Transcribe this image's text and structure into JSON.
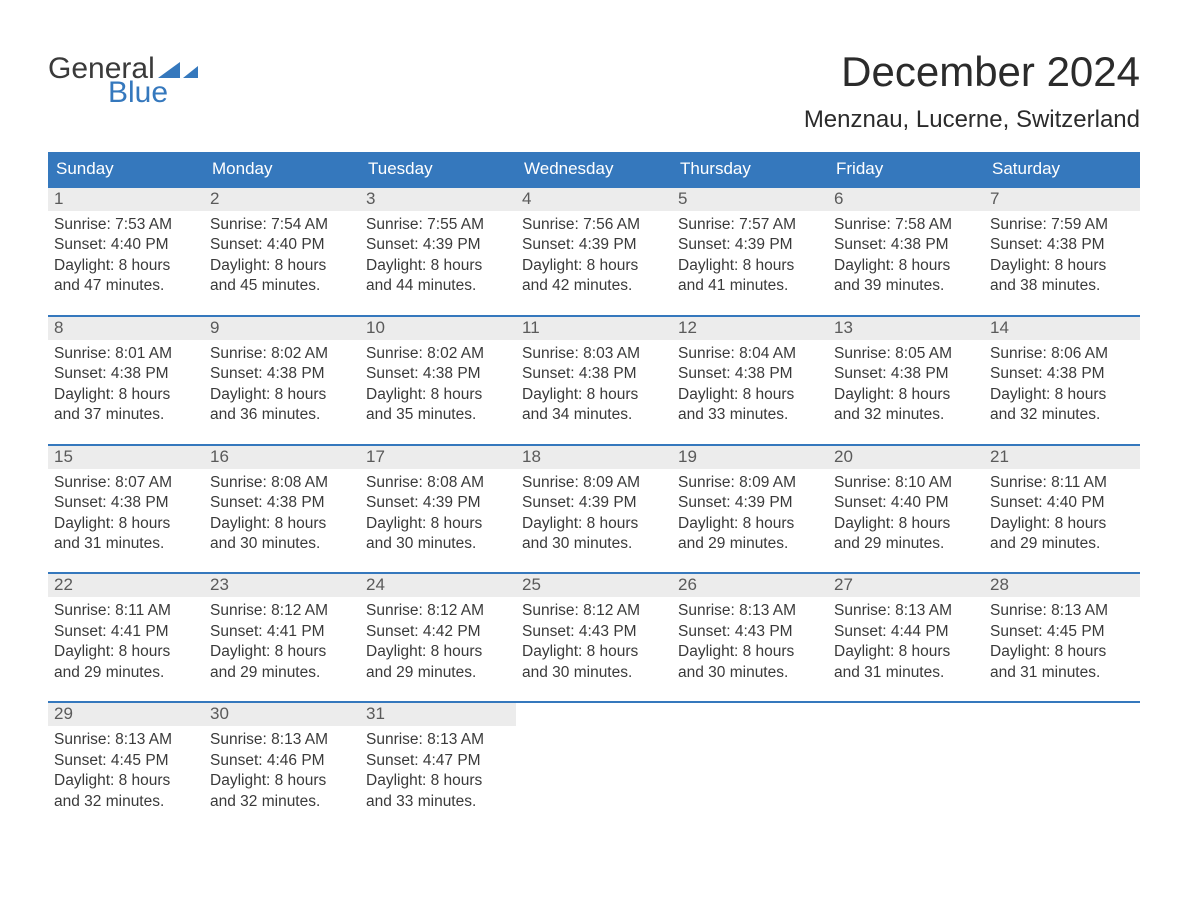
{
  "logo": {
    "top": "General",
    "bottom": "Blue",
    "accent_color": "#3578bd",
    "text_color": "#3a3a3a"
  },
  "title": "December 2024",
  "subtitle": "Menznau, Lucerne, Switzerland",
  "colors": {
    "header_bg": "#3578bd",
    "header_text": "#ffffff",
    "daynum_bg": "#ececec",
    "daynum_text": "#5a5a5a",
    "body_text": "#3a3a3a",
    "week_border": "#3578bd",
    "background": "#ffffff"
  },
  "typography": {
    "title_fontsize": 42,
    "subtitle_fontsize": 24,
    "dow_fontsize": 17,
    "daynum_fontsize": 17,
    "body_fontsize": 15.5
  },
  "dow": [
    "Sunday",
    "Monday",
    "Tuesday",
    "Wednesday",
    "Thursday",
    "Friday",
    "Saturday"
  ],
  "labels": {
    "sunrise": "Sunrise:",
    "sunset": "Sunset:",
    "daylight": "Daylight:"
  },
  "weeks": [
    [
      {
        "n": "1",
        "sunrise": "7:53 AM",
        "sunset": "4:40 PM",
        "daylight_l1": "8 hours",
        "daylight_l2": "and 47 minutes."
      },
      {
        "n": "2",
        "sunrise": "7:54 AM",
        "sunset": "4:40 PM",
        "daylight_l1": "8 hours",
        "daylight_l2": "and 45 minutes."
      },
      {
        "n": "3",
        "sunrise": "7:55 AM",
        "sunset": "4:39 PM",
        "daylight_l1": "8 hours",
        "daylight_l2": "and 44 minutes."
      },
      {
        "n": "4",
        "sunrise": "7:56 AM",
        "sunset": "4:39 PM",
        "daylight_l1": "8 hours",
        "daylight_l2": "and 42 minutes."
      },
      {
        "n": "5",
        "sunrise": "7:57 AM",
        "sunset": "4:39 PM",
        "daylight_l1": "8 hours",
        "daylight_l2": "and 41 minutes."
      },
      {
        "n": "6",
        "sunrise": "7:58 AM",
        "sunset": "4:38 PM",
        "daylight_l1": "8 hours",
        "daylight_l2": "and 39 minutes."
      },
      {
        "n": "7",
        "sunrise": "7:59 AM",
        "sunset": "4:38 PM",
        "daylight_l1": "8 hours",
        "daylight_l2": "and 38 minutes."
      }
    ],
    [
      {
        "n": "8",
        "sunrise": "8:01 AM",
        "sunset": "4:38 PM",
        "daylight_l1": "8 hours",
        "daylight_l2": "and 37 minutes."
      },
      {
        "n": "9",
        "sunrise": "8:02 AM",
        "sunset": "4:38 PM",
        "daylight_l1": "8 hours",
        "daylight_l2": "and 36 minutes."
      },
      {
        "n": "10",
        "sunrise": "8:02 AM",
        "sunset": "4:38 PM",
        "daylight_l1": "8 hours",
        "daylight_l2": "and 35 minutes."
      },
      {
        "n": "11",
        "sunrise": "8:03 AM",
        "sunset": "4:38 PM",
        "daylight_l1": "8 hours",
        "daylight_l2": "and 34 minutes."
      },
      {
        "n": "12",
        "sunrise": "8:04 AM",
        "sunset": "4:38 PM",
        "daylight_l1": "8 hours",
        "daylight_l2": "and 33 minutes."
      },
      {
        "n": "13",
        "sunrise": "8:05 AM",
        "sunset": "4:38 PM",
        "daylight_l1": "8 hours",
        "daylight_l2": "and 32 minutes."
      },
      {
        "n": "14",
        "sunrise": "8:06 AM",
        "sunset": "4:38 PM",
        "daylight_l1": "8 hours",
        "daylight_l2": "and 32 minutes."
      }
    ],
    [
      {
        "n": "15",
        "sunrise": "8:07 AM",
        "sunset": "4:38 PM",
        "daylight_l1": "8 hours",
        "daylight_l2": "and 31 minutes."
      },
      {
        "n": "16",
        "sunrise": "8:08 AM",
        "sunset": "4:38 PM",
        "daylight_l1": "8 hours",
        "daylight_l2": "and 30 minutes."
      },
      {
        "n": "17",
        "sunrise": "8:08 AM",
        "sunset": "4:39 PM",
        "daylight_l1": "8 hours",
        "daylight_l2": "and 30 minutes."
      },
      {
        "n": "18",
        "sunrise": "8:09 AM",
        "sunset": "4:39 PM",
        "daylight_l1": "8 hours",
        "daylight_l2": "and 30 minutes."
      },
      {
        "n": "19",
        "sunrise": "8:09 AM",
        "sunset": "4:39 PM",
        "daylight_l1": "8 hours",
        "daylight_l2": "and 29 minutes."
      },
      {
        "n": "20",
        "sunrise": "8:10 AM",
        "sunset": "4:40 PM",
        "daylight_l1": "8 hours",
        "daylight_l2": "and 29 minutes."
      },
      {
        "n": "21",
        "sunrise": "8:11 AM",
        "sunset": "4:40 PM",
        "daylight_l1": "8 hours",
        "daylight_l2": "and 29 minutes."
      }
    ],
    [
      {
        "n": "22",
        "sunrise": "8:11 AM",
        "sunset": "4:41 PM",
        "daylight_l1": "8 hours",
        "daylight_l2": "and 29 minutes."
      },
      {
        "n": "23",
        "sunrise": "8:12 AM",
        "sunset": "4:41 PM",
        "daylight_l1": "8 hours",
        "daylight_l2": "and 29 minutes."
      },
      {
        "n": "24",
        "sunrise": "8:12 AM",
        "sunset": "4:42 PM",
        "daylight_l1": "8 hours",
        "daylight_l2": "and 29 minutes."
      },
      {
        "n": "25",
        "sunrise": "8:12 AM",
        "sunset": "4:43 PM",
        "daylight_l1": "8 hours",
        "daylight_l2": "and 30 minutes."
      },
      {
        "n": "26",
        "sunrise": "8:13 AM",
        "sunset": "4:43 PM",
        "daylight_l1": "8 hours",
        "daylight_l2": "and 30 minutes."
      },
      {
        "n": "27",
        "sunrise": "8:13 AM",
        "sunset": "4:44 PM",
        "daylight_l1": "8 hours",
        "daylight_l2": "and 31 minutes."
      },
      {
        "n": "28",
        "sunrise": "8:13 AM",
        "sunset": "4:45 PM",
        "daylight_l1": "8 hours",
        "daylight_l2": "and 31 minutes."
      }
    ],
    [
      {
        "n": "29",
        "sunrise": "8:13 AM",
        "sunset": "4:45 PM",
        "daylight_l1": "8 hours",
        "daylight_l2": "and 32 minutes."
      },
      {
        "n": "30",
        "sunrise": "8:13 AM",
        "sunset": "4:46 PM",
        "daylight_l1": "8 hours",
        "daylight_l2": "and 32 minutes."
      },
      {
        "n": "31",
        "sunrise": "8:13 AM",
        "sunset": "4:47 PM",
        "daylight_l1": "8 hours",
        "daylight_l2": "and 33 minutes."
      },
      {
        "empty": true
      },
      {
        "empty": true
      },
      {
        "empty": true
      },
      {
        "empty": true
      }
    ]
  ]
}
